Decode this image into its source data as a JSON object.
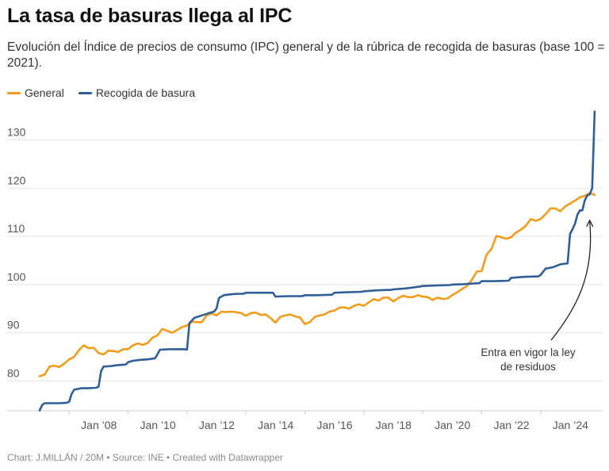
{
  "title": "La tasa de basuras llega al IPC",
  "subtitle": "Evolución del Índice de precios de consumo (IPC) general y de la rúbrica de recogida de basuras (base 100 = 2021).",
  "footer": "Chart: J.MILLÁN / 20M • Source: INE • Created with Datawrapper",
  "colors": {
    "general": "#f39c1b",
    "recogida": "#2e5f96",
    "grid": "#e3e3e3",
    "axis": "#cccccc",
    "annotation": "#222222"
  },
  "annotation": {
    "line1": "Entra en vigor la ley",
    "line2": "de residuos",
    "target_x": "2025-09",
    "target_y": 113.5
  },
  "chart_data": {
    "type": "line",
    "x_axis": {
      "type": "date",
      "range": [
        "2007-01",
        "2025-12"
      ],
      "tick_labels": [
        "Jan ’08",
        "Jan ’10",
        "Jan ’12",
        "Jan ’14",
        "Jan ’16",
        "Jan ’18",
        "Jan ’20",
        "Jan ’22",
        "Jan ’24"
      ],
      "tick_values": [
        "2008-01",
        "2010-01",
        "2012-01",
        "2014-01",
        "2016-01",
        "2018-01",
        "2020-01",
        "2022-01",
        "2024-01"
      ]
    },
    "y_axis": {
      "range": [
        74,
        136
      ],
      "ticks": [
        80,
        90,
        100,
        110,
        120,
        130
      ]
    },
    "grid": true,
    "legend_position": "top-left",
    "series": [
      {
        "name": "General",
        "points": [
          [
            "2007-01",
            81
          ],
          [
            "2007-03",
            81.3
          ],
          [
            "2007-05",
            83
          ],
          [
            "2007-07",
            83.2
          ],
          [
            "2007-09",
            82.9
          ],
          [
            "2007-11",
            83.6
          ],
          [
            "2008-01",
            84.5
          ],
          [
            "2008-03",
            85
          ],
          [
            "2008-05",
            86.4
          ],
          [
            "2008-07",
            87.4
          ],
          [
            "2008-09",
            86.8
          ],
          [
            "2008-11",
            86.9
          ],
          [
            "2009-01",
            85.8
          ],
          [
            "2009-03",
            85.5
          ],
          [
            "2009-05",
            86.3
          ],
          [
            "2009-07",
            86.2
          ],
          [
            "2009-09",
            86.0
          ],
          [
            "2009-11",
            86.6
          ],
          [
            "2010-01",
            86.6
          ],
          [
            "2010-03",
            87.4
          ],
          [
            "2010-05",
            87.8
          ],
          [
            "2010-07",
            87.5
          ],
          [
            "2010-09",
            87.9
          ],
          [
            "2010-11",
            89.0
          ],
          [
            "2011-01",
            89.5
          ],
          [
            "2011-03",
            90.8
          ],
          [
            "2011-05",
            90.4
          ],
          [
            "2011-07",
            90.0
          ],
          [
            "2011-09",
            90.6
          ],
          [
            "2011-11",
            91.2
          ],
          [
            "2012-01",
            91.5
          ],
          [
            "2012-03",
            92.3
          ],
          [
            "2012-05",
            92.2
          ],
          [
            "2012-07",
            92.2
          ],
          [
            "2012-09",
            93.6
          ],
          [
            "2012-11",
            94.0
          ],
          [
            "2013-01",
            93.6
          ],
          [
            "2013-03",
            94.4
          ],
          [
            "2013-05",
            94.3
          ],
          [
            "2013-07",
            94.4
          ],
          [
            "2013-09",
            94.3
          ],
          [
            "2013-11",
            94.1
          ],
          [
            "2014-01",
            93.5
          ],
          [
            "2014-03",
            94.1
          ],
          [
            "2014-05",
            94.2
          ],
          [
            "2014-07",
            93.7
          ],
          [
            "2014-09",
            93.8
          ],
          [
            "2014-11",
            93.1
          ],
          [
            "2015-01",
            92.1
          ],
          [
            "2015-03",
            93.3
          ],
          [
            "2015-05",
            93.6
          ],
          [
            "2015-07",
            93.8
          ],
          [
            "2015-09",
            93.4
          ],
          [
            "2015-11",
            93.2
          ],
          [
            "2016-01",
            91.8
          ],
          [
            "2016-03",
            92.2
          ],
          [
            "2016-05",
            93.3
          ],
          [
            "2016-07",
            93.6
          ],
          [
            "2016-09",
            93.8
          ],
          [
            "2016-11",
            94.4
          ],
          [
            "2017-01",
            94.6
          ],
          [
            "2017-03",
            95.2
          ],
          [
            "2017-05",
            95.3
          ],
          [
            "2017-07",
            95.0
          ],
          [
            "2017-09",
            95.6
          ],
          [
            "2017-11",
            95.9
          ],
          [
            "2018-01",
            95.6
          ],
          [
            "2018-03",
            96.3
          ],
          [
            "2018-05",
            97.0
          ],
          [
            "2018-07",
            96.7
          ],
          [
            "2018-09",
            97.3
          ],
          [
            "2018-11",
            97.3
          ],
          [
            "2019-01",
            96.5
          ],
          [
            "2019-03",
            97.2
          ],
          [
            "2019-05",
            97.7
          ],
          [
            "2019-07",
            97.4
          ],
          [
            "2019-09",
            97.4
          ],
          [
            "2019-11",
            97.8
          ],
          [
            "2020-01",
            97.5
          ],
          [
            "2020-03",
            97.4
          ],
          [
            "2020-05",
            96.8
          ],
          [
            "2020-07",
            97.3
          ],
          [
            "2020-09",
            97.0
          ],
          [
            "2020-11",
            97.1
          ],
          [
            "2021-01",
            97.8
          ],
          [
            "2021-03",
            98.4
          ],
          [
            "2021-05",
            99.1
          ],
          [
            "2021-07",
            99.7
          ],
          [
            "2021-09",
            101.0
          ],
          [
            "2021-11",
            102.7
          ],
          [
            "2022-01",
            102.8
          ],
          [
            "2022-03",
            106.2
          ],
          [
            "2022-05",
            107.4
          ],
          [
            "2022-07",
            110.1
          ],
          [
            "2022-09",
            109.8
          ],
          [
            "2022-11",
            109.5
          ],
          [
            "2023-01",
            109.8
          ],
          [
            "2023-03",
            110.8
          ],
          [
            "2023-05",
            111.4
          ],
          [
            "2023-07",
            112.2
          ],
          [
            "2023-09",
            113.6
          ],
          [
            "2023-11",
            113.2
          ],
          [
            "2024-01",
            113.6
          ],
          [
            "2024-03",
            114.6
          ],
          [
            "2024-05",
            115.8
          ],
          [
            "2024-07",
            115.8
          ],
          [
            "2024-09",
            115.2
          ],
          [
            "2024-11",
            116.2
          ],
          [
            "2025-01",
            116.8
          ],
          [
            "2025-03",
            117.4
          ],
          [
            "2025-05",
            118.1
          ],
          [
            "2025-07",
            118.4
          ],
          [
            "2025-09",
            119.0
          ],
          [
            "2025-11",
            118.6
          ]
        ]
      },
      {
        "name": "Recogida de basura",
        "points": [
          [
            "2007-01",
            73.9
          ],
          [
            "2007-02",
            75.0
          ],
          [
            "2007-03",
            75.4
          ],
          [
            "2007-06",
            75.4
          ],
          [
            "2007-09",
            75.4
          ],
          [
            "2007-12",
            75.5
          ],
          [
            "2008-01",
            75.7
          ],
          [
            "2008-02",
            77.3
          ],
          [
            "2008-03",
            78.2
          ],
          [
            "2008-06",
            78.5
          ],
          [
            "2008-09",
            78.5
          ],
          [
            "2008-12",
            78.6
          ],
          [
            "2009-01",
            78.8
          ],
          [
            "2009-02",
            82.0
          ],
          [
            "2009-03",
            83.0
          ],
          [
            "2009-06",
            83.1
          ],
          [
            "2009-09",
            83.3
          ],
          [
            "2009-12",
            83.4
          ],
          [
            "2010-01",
            83.9
          ],
          [
            "2010-03",
            84.2
          ],
          [
            "2010-06",
            84.4
          ],
          [
            "2010-09",
            84.5
          ],
          [
            "2010-12",
            84.7
          ],
          [
            "2011-01",
            85.6
          ],
          [
            "2011-02",
            86.5
          ],
          [
            "2011-06",
            86.6
          ],
          [
            "2011-09",
            86.6
          ],
          [
            "2011-12",
            86.6
          ],
          [
            "2012-01",
            86.5
          ],
          [
            "2012-02",
            92.0
          ],
          [
            "2012-04",
            93.1
          ],
          [
            "2012-07",
            93.6
          ],
          [
            "2012-10",
            94.1
          ],
          [
            "2012-12",
            94.4
          ],
          [
            "2013-01",
            95.0
          ],
          [
            "2013-02",
            97.2
          ],
          [
            "2013-04",
            97.8
          ],
          [
            "2013-07",
            98.0
          ],
          [
            "2013-10",
            98.1
          ],
          [
            "2013-12",
            98.1
          ],
          [
            "2014-01",
            98.3
          ],
          [
            "2014-06",
            98.3
          ],
          [
            "2014-09",
            98.3
          ],
          [
            "2014-12",
            98.3
          ],
          [
            "2015-01",
            97.5
          ],
          [
            "2015-06",
            97.6
          ],
          [
            "2015-12",
            97.6
          ],
          [
            "2016-01",
            97.8
          ],
          [
            "2016-06",
            97.8
          ],
          [
            "2016-12",
            97.9
          ],
          [
            "2017-01",
            98.3
          ],
          [
            "2017-06",
            98.4
          ],
          [
            "2017-12",
            98.5
          ],
          [
            "2018-01",
            98.6
          ],
          [
            "2018-06",
            98.8
          ],
          [
            "2018-12",
            98.9
          ],
          [
            "2019-01",
            99.0
          ],
          [
            "2019-06",
            99.2
          ],
          [
            "2019-12",
            99.6
          ],
          [
            "2020-01",
            99.7
          ],
          [
            "2020-06",
            99.8
          ],
          [
            "2020-12",
            99.9
          ],
          [
            "2021-01",
            100.0
          ],
          [
            "2021-06",
            100.1
          ],
          [
            "2021-12",
            100.3
          ],
          [
            "2022-01",
            100.7
          ],
          [
            "2022-06",
            100.7
          ],
          [
            "2022-12",
            100.8
          ],
          [
            "2023-01",
            101.4
          ],
          [
            "2023-06",
            101.6
          ],
          [
            "2023-12",
            101.7
          ],
          [
            "2024-01",
            102.0
          ],
          [
            "2024-03",
            103.3
          ],
          [
            "2024-06",
            103.6
          ],
          [
            "2024-09",
            104.2
          ],
          [
            "2024-12",
            104.4
          ],
          [
            "2025-01",
            110.5
          ],
          [
            "2025-02",
            111.5
          ],
          [
            "2025-03",
            112.6
          ],
          [
            "2025-04",
            114.5
          ],
          [
            "2025-05",
            115.4
          ],
          [
            "2025-06",
            115.4
          ],
          [
            "2025-07",
            117.5
          ],
          [
            "2025-08",
            118.5
          ],
          [
            "2025-09",
            118.7
          ],
          [
            "2025-10",
            120.0
          ],
          [
            "2025-11",
            135.9
          ]
        ]
      }
    ]
  }
}
